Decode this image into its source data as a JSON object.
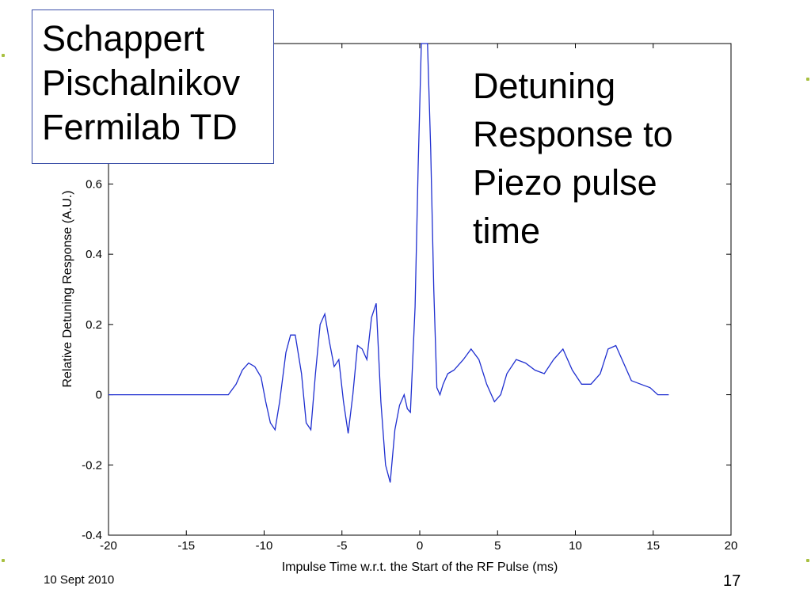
{
  "slide": {
    "authors": [
      "Schappert",
      "Pischalnikov",
      "Fermilab TD"
    ],
    "caption": [
      "Detuning",
      "Response to",
      "Piezo pulse",
      "time"
    ],
    "footer_date": "10 Sept 2010",
    "page_number": "17",
    "accent_color": "#a8c040"
  },
  "chart_data": {
    "type": "line",
    "title": "",
    "xlabel": "Impulse Time w.r.t. the Start of the RF Pulse (ms)",
    "ylabel": "Relative Detuning Response (A.U.)",
    "xlim": [
      -20,
      20
    ],
    "ylim": [
      -0.4,
      1.0
    ],
    "x_ticks": [
      -20,
      -15,
      -10,
      -5,
      0,
      5,
      10,
      15,
      20
    ],
    "y_ticks": [
      -0.4,
      -0.2,
      0,
      0.2,
      0.4,
      0.6
    ],
    "x_tick_labels": [
      "-20",
      "-15",
      "-10",
      "-5",
      "0",
      "5",
      "10",
      "15",
      "20"
    ],
    "y_tick_labels": [
      "-0.4",
      "-0.2",
      "0",
      "0.2",
      "0.4",
      "0.6"
    ],
    "grid": false,
    "series": [
      {
        "color": "#1f2fd0",
        "x": [
          -20,
          -13,
          -12.3,
          -11.8,
          -11.4,
          -11,
          -10.6,
          -10.2,
          -9.9,
          -9.6,
          -9.3,
          -9.0,
          -8.6,
          -8.3,
          -8.0,
          -7.6,
          -7.3,
          -7.0,
          -6.7,
          -6.4,
          -6.1,
          -5.8,
          -5.5,
          -5.2,
          -4.9,
          -4.6,
          -4.3,
          -4.0,
          -3.7,
          -3.4,
          -3.1,
          -2.8,
          -2.5,
          -2.2,
          -1.9,
          -1.6,
          -1.3,
          -1.0,
          -0.8,
          -0.6,
          -0.3,
          -0.1,
          0.1,
          0.3,
          0.5,
          0.7,
          0.9,
          1.1,
          1.3,
          1.5,
          1.8,
          2.2,
          2.8,
          3.3,
          3.8,
          4.3,
          4.8,
          5.2,
          5.6,
          6.2,
          6.8,
          7.4,
          8.0,
          8.6,
          9.2,
          9.8,
          10.4,
          11.0,
          11.6,
          12.1,
          12.6,
          13.1,
          13.6,
          14.2,
          14.8,
          15.3,
          15.6,
          16.0
        ],
        "y": [
          0,
          0,
          0,
          0.03,
          0.07,
          0.09,
          0.08,
          0.05,
          -0.02,
          -0.08,
          -0.1,
          -0.02,
          0.12,
          0.17,
          0.17,
          0.06,
          -0.08,
          -0.1,
          0.06,
          0.2,
          0.23,
          0.15,
          0.08,
          0.1,
          -0.02,
          -0.11,
          0.0,
          0.14,
          0.13,
          0.1,
          0.22,
          0.26,
          -0.02,
          -0.2,
          -0.25,
          -0.1,
          -0.03,
          0.0,
          -0.04,
          -0.05,
          0.25,
          0.65,
          1.0,
          1.05,
          1.0,
          0.7,
          0.3,
          0.02,
          0.0,
          0.03,
          0.06,
          0.07,
          0.1,
          0.13,
          0.1,
          0.03,
          -0.02,
          0.0,
          0.06,
          0.1,
          0.09,
          0.07,
          0.06,
          0.1,
          0.13,
          0.07,
          0.03,
          0.03,
          0.06,
          0.13,
          0.14,
          0.09,
          0.04,
          0.03,
          0.02,
          0.0,
          0.0,
          0.0
        ]
      }
    ]
  }
}
